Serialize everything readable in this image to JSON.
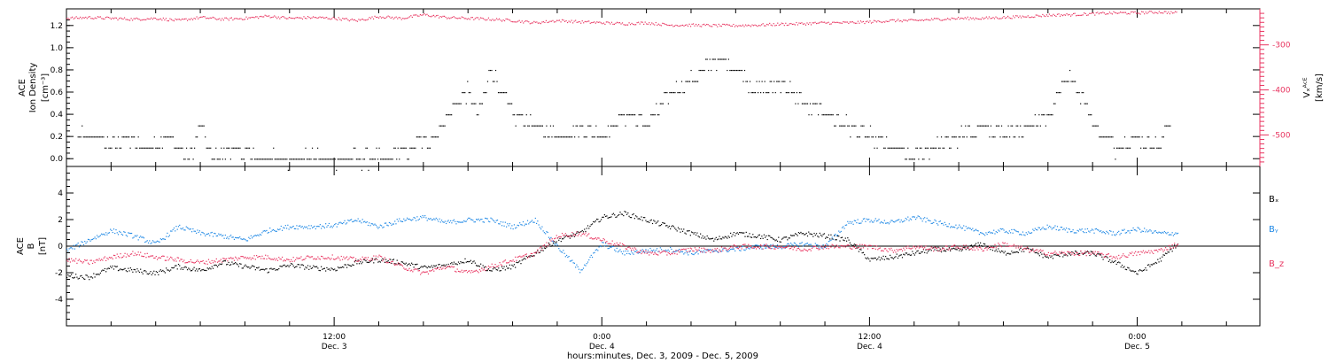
{
  "colors": {
    "black": "#000000",
    "pink": "#e8335f",
    "blue": "#1e88e5"
  },
  "x_axis": {
    "title": "hours:minutes, Dec.  3, 2009 - Dec.  5, 2009",
    "ticks": [
      {
        "time": "12:00",
        "date": "Dec. 3",
        "hours": 12
      },
      {
        "time": "0:00",
        "date": "Dec. 4",
        "hours": 24
      },
      {
        "time": "12:00",
        "date": "Dec. 4",
        "hours": 36
      },
      {
        "time": "0:00",
        "date": "Dec. 5",
        "hours": 48
      }
    ]
  },
  "chart_data": [
    {
      "type": "scatter",
      "panel": "density-velocity",
      "x_range_hours": [
        0,
        53.5
      ],
      "ylabel_left": {
        "line1": "ACE",
        "line2": "Ion Density",
        "unit": "[cm⁻³]"
      },
      "ylabel_right": {
        "quantity": "Vₓᴬᶜᴱ",
        "unit": "[km/s]"
      },
      "ylim_left": [
        -0.07,
        1.35
      ],
      "ylim_right": [
        -570,
        -220
      ],
      "left_ticks": [
        "0.0",
        "0.2",
        "0.4",
        "0.6",
        "0.8",
        "1.0",
        "1.2"
      ],
      "right_ticks": [
        "-300",
        "-400",
        "-500"
      ],
      "series": [
        {
          "axis": "left",
          "color": "black",
          "points": [
            [
              0.5,
              0.2
            ],
            [
              1.5,
              0.2
            ],
            [
              2.0,
              0.1
            ],
            [
              2.5,
              0.2
            ],
            [
              3.5,
              0.1
            ],
            [
              4.5,
              0.2
            ],
            [
              5.5,
              0.0
            ],
            [
              6.0,
              0.3
            ],
            [
              6.5,
              0.0
            ],
            [
              7.5,
              0.1
            ],
            [
              8.5,
              0.0
            ],
            [
              9.5,
              0.0
            ],
            [
              10.5,
              0.0
            ],
            [
              11.5,
              0.0
            ],
            [
              12.5,
              0.0
            ],
            [
              13.5,
              0.0
            ],
            [
              14.5,
              0.0
            ],
            [
              15.5,
              0.1
            ],
            [
              16.5,
              0.2
            ],
            [
              17.5,
              0.5
            ],
            [
              18.0,
              0.6
            ],
            [
              18.5,
              0.4
            ],
            [
              19.0,
              0.8
            ],
            [
              20.0,
              0.4
            ],
            [
              21.0,
              0.3
            ],
            [
              22.0,
              0.2
            ],
            [
              23.0,
              0.3
            ],
            [
              24.0,
              0.2
            ],
            [
              25.0,
              0.4
            ],
            [
              26.0,
              0.3
            ],
            [
              27.0,
              0.6
            ],
            [
              28.0,
              0.7
            ],
            [
              29.0,
              0.9
            ],
            [
              30.0,
              0.8
            ],
            [
              31.0,
              0.6
            ],
            [
              32.0,
              0.7
            ],
            [
              33.0,
              0.5
            ],
            [
              34.0,
              0.4
            ],
            [
              35.0,
              0.3
            ],
            [
              36.0,
              0.2
            ],
            [
              37.0,
              0.1
            ],
            [
              38.0,
              0.0
            ],
            [
              39.0,
              0.1
            ],
            [
              40.0,
              0.2
            ],
            [
              41.0,
              0.3
            ],
            [
              42.0,
              0.2
            ],
            [
              43.0,
              0.3
            ],
            [
              44.0,
              0.4
            ],
            [
              45.0,
              0.8
            ],
            [
              46.0,
              0.3
            ],
            [
              47.0,
              0.1
            ],
            [
              48.0,
              0.2
            ],
            [
              49.0,
              0.1
            ],
            [
              49.5,
              0.4
            ]
          ]
        },
        {
          "axis": "right",
          "color": "pink",
          "points": [
            [
              0.0,
              -240
            ],
            [
              1.0,
              -238
            ],
            [
              2.0,
              -240
            ],
            [
              3.0,
              -242
            ],
            [
              4.0,
              -240
            ],
            [
              5.0,
              -245
            ],
            [
              6.0,
              -238
            ],
            [
              7.0,
              -242
            ],
            [
              8.0,
              -240
            ],
            [
              9.0,
              -235
            ],
            [
              10.0,
              -240
            ],
            [
              11.0,
              -238
            ],
            [
              12.0,
              -240
            ],
            [
              13.0,
              -245
            ],
            [
              14.0,
              -236
            ],
            [
              15.0,
              -240
            ],
            [
              16.0,
              -232
            ],
            [
              17.0,
              -238
            ],
            [
              18.0,
              -240
            ],
            [
              19.0,
              -242
            ],
            [
              20.0,
              -245
            ],
            [
              21.0,
              -250
            ],
            [
              22.0,
              -245
            ],
            [
              23.0,
              -248
            ],
            [
              24.0,
              -250
            ],
            [
              25.0,
              -252
            ],
            [
              26.0,
              -250
            ],
            [
              27.0,
              -255
            ],
            [
              28.0,
              -255
            ],
            [
              29.0,
              -256
            ],
            [
              30.0,
              -256
            ],
            [
              31.0,
              -255
            ],
            [
              32.0,
              -253
            ],
            [
              33.0,
              -252
            ],
            [
              34.0,
              -250
            ],
            [
              35.0,
              -250
            ],
            [
              36.0,
              -248
            ],
            [
              37.0,
              -245
            ],
            [
              38.0,
              -245
            ],
            [
              39.0,
              -242
            ],
            [
              40.0,
              -240
            ],
            [
              41.0,
              -240
            ],
            [
              42.0,
              -238
            ],
            [
              43.0,
              -236
            ],
            [
              44.0,
              -233
            ],
            [
              45.0,
              -232
            ],
            [
              46.0,
              -230
            ],
            [
              47.0,
              -228
            ],
            [
              48.0,
              -228
            ],
            [
              49.0,
              -226
            ],
            [
              49.8,
              -228
            ]
          ]
        }
      ]
    },
    {
      "type": "scatter",
      "panel": "magnetic-field",
      "x_range_hours": [
        0,
        53.5
      ],
      "ylabel": {
        "line1": "ACE",
        "line2": "B",
        "unit": "[nT]"
      },
      "ylim": [
        -6,
        6
      ],
      "y_ticks": [
        "4",
        "2",
        "0",
        "-2",
        "-4"
      ],
      "legend_position": "right",
      "series": [
        {
          "name": "Bₓ",
          "color": "black",
          "points": [
            [
              0,
              -2.2
            ],
            [
              1,
              -2.3
            ],
            [
              2,
              -1.6
            ],
            [
              3,
              -1.8
            ],
            [
              4,
              -2.0
            ],
            [
              5,
              -1.5
            ],
            [
              6,
              -1.8
            ],
            [
              7,
              -1.2
            ],
            [
              8,
              -1.5
            ],
            [
              9,
              -1.8
            ],
            [
              10,
              -1.4
            ],
            [
              11,
              -1.6
            ],
            [
              12,
              -1.7
            ],
            [
              13,
              -1.2
            ],
            [
              14,
              -1.0
            ],
            [
              15,
              -1.2
            ],
            [
              16,
              -1.6
            ],
            [
              17,
              -1.4
            ],
            [
              18,
              -1.0
            ],
            [
              19,
              -1.8
            ],
            [
              20,
              -1.5
            ],
            [
              21,
              -0.5
            ],
            [
              22,
              0.5
            ],
            [
              23,
              1.0
            ],
            [
              24,
              2.2
            ],
            [
              25,
              2.5
            ],
            [
              26,
              2.0
            ],
            [
              27,
              1.5
            ],
            [
              28,
              1.0
            ],
            [
              29,
              0.5
            ],
            [
              30,
              1.0
            ],
            [
              31,
              0.8
            ],
            [
              32,
              0.5
            ],
            [
              33,
              1.0
            ],
            [
              34,
              0.8
            ],
            [
              35,
              0.5
            ],
            [
              36,
              -1.0
            ],
            [
              37,
              -0.8
            ],
            [
              38,
              -0.5
            ],
            [
              39,
              -0.2
            ],
            [
              40,
              -0.3
            ],
            [
              41,
              0.2
            ],
            [
              42,
              -0.5
            ],
            [
              43,
              -0.2
            ],
            [
              44,
              -0.8
            ],
            [
              45,
              -0.5
            ],
            [
              46,
              -0.5
            ],
            [
              47,
              -1.2
            ],
            [
              48,
              -2.0
            ],
            [
              49,
              -1.0
            ],
            [
              49.8,
              0.2
            ]
          ]
        },
        {
          "name": "Bᵧ",
          "color": "blue",
          "points": [
            [
              0,
              -0.3
            ],
            [
              1,
              0.5
            ],
            [
              2,
              1.2
            ],
            [
              3,
              0.8
            ],
            [
              4,
              0.2
            ],
            [
              5,
              1.5
            ],
            [
              6,
              1.0
            ],
            [
              7,
              0.8
            ],
            [
              8,
              0.5
            ],
            [
              9,
              1.2
            ],
            [
              10,
              1.5
            ],
            [
              11,
              1.5
            ],
            [
              12,
              1.6
            ],
            [
              13,
              2.0
            ],
            [
              14,
              1.5
            ],
            [
              15,
              2.0
            ],
            [
              16,
              2.2
            ],
            [
              17,
              1.8
            ],
            [
              18,
              2.0
            ],
            [
              19,
              2.0
            ],
            [
              20,
              1.5
            ],
            [
              21,
              2.0
            ],
            [
              22,
              0.0
            ],
            [
              23,
              -1.8
            ],
            [
              24,
              0.2
            ],
            [
              25,
              -0.5
            ],
            [
              26,
              -0.3
            ],
            [
              27,
              -0.2
            ],
            [
              28,
              -0.5
            ],
            [
              29,
              -0.3
            ],
            [
              30,
              -0.2
            ],
            [
              31,
              0.0
            ],
            [
              32,
              0.0
            ],
            [
              33,
              0.2
            ],
            [
              34,
              0.0
            ],
            [
              35,
              1.8
            ],
            [
              36,
              2.0
            ],
            [
              37,
              1.8
            ],
            [
              38,
              2.2
            ],
            [
              39,
              1.8
            ],
            [
              40,
              1.5
            ],
            [
              41,
              1.0
            ],
            [
              42,
              1.2
            ],
            [
              43,
              1.0
            ],
            [
              44,
              1.5
            ],
            [
              45,
              1.2
            ],
            [
              46,
              1.2
            ],
            [
              47,
              1.0
            ],
            [
              48,
              1.3
            ],
            [
              49,
              1.0
            ],
            [
              49.8,
              1.0
            ]
          ]
        },
        {
          "name": "B_z",
          "color": "pink",
          "points": [
            [
              0,
              -1.0
            ],
            [
              1,
              -1.2
            ],
            [
              2,
              -0.8
            ],
            [
              3,
              -0.5
            ],
            [
              4,
              -0.8
            ],
            [
              5,
              -1.0
            ],
            [
              6,
              -1.2
            ],
            [
              7,
              -1.0
            ],
            [
              8,
              -0.8
            ],
            [
              9,
              -0.8
            ],
            [
              10,
              -1.0
            ],
            [
              11,
              -0.8
            ],
            [
              12,
              -0.8
            ],
            [
              13,
              -1.0
            ],
            [
              14,
              -0.8
            ],
            [
              15,
              -1.5
            ],
            [
              16,
              -2.0
            ],
            [
              17,
              -1.5
            ],
            [
              18,
              -2.0
            ],
            [
              19,
              -1.5
            ],
            [
              20,
              -1.0
            ],
            [
              21,
              -0.5
            ],
            [
              22,
              0.8
            ],
            [
              23,
              1.0
            ],
            [
              24,
              0.5
            ],
            [
              25,
              0.0
            ],
            [
              26,
              -0.5
            ],
            [
              27,
              -0.5
            ],
            [
              28,
              -0.2
            ],
            [
              29,
              -0.3
            ],
            [
              30,
              0.0
            ],
            [
              31,
              0.0
            ],
            [
              32,
              0.0
            ],
            [
              33,
              -0.2
            ],
            [
              34,
              0.0
            ],
            [
              35,
              0.0
            ],
            [
              36,
              0.0
            ],
            [
              37,
              -0.3
            ],
            [
              38,
              0.0
            ],
            [
              39,
              -0.2
            ],
            [
              40,
              0.0
            ],
            [
              41,
              -0.2
            ],
            [
              42,
              0.2
            ],
            [
              43,
              -0.2
            ],
            [
              44,
              -0.5
            ],
            [
              45,
              -0.5
            ],
            [
              46,
              -0.5
            ],
            [
              47,
              -0.8
            ],
            [
              48,
              -0.5
            ],
            [
              49,
              -0.3
            ],
            [
              49.8,
              0.2
            ]
          ]
        }
      ]
    }
  ]
}
